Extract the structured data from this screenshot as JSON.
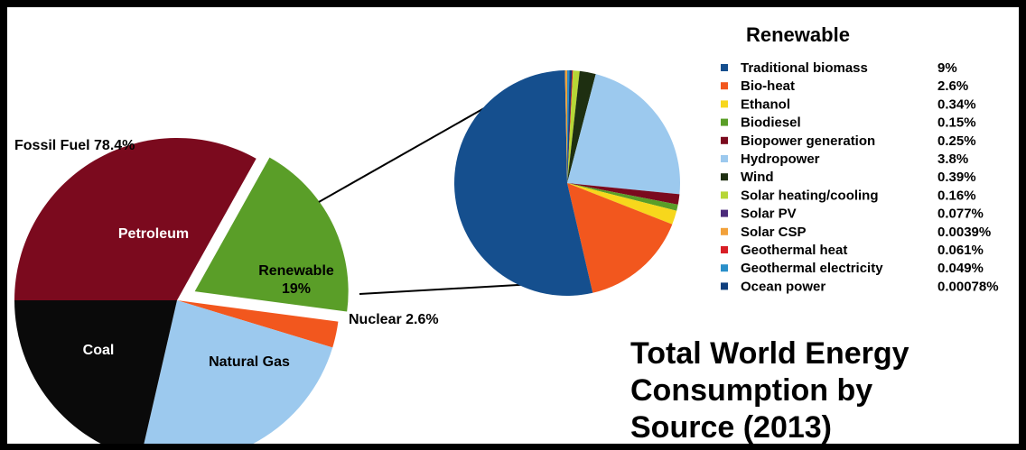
{
  "chart_data": [
    {
      "type": "pie",
      "title": "Total World Energy Consumption by Source (2013)",
      "title_lines": [
        "Total World Energy",
        "Consumption by",
        "Source (2013)"
      ],
      "group_label": "Fossil Fuel",
      "group_value_label": "78.4%",
      "slices": [
        {
          "name": "Petroleum",
          "value": 33.1,
          "color": "#7b0a1e"
        },
        {
          "name": "Renewable",
          "value": 19,
          "value_label": "19%",
          "color": "#5a9e28"
        },
        {
          "name": "Nuclear",
          "value": 2.6,
          "value_label": "2.6%",
          "color": "#f2571e"
        },
        {
          "name": "Natural Gas",
          "value": 23.9,
          "color": "#9cc9ee"
        },
        {
          "name": "Coal",
          "value": 21.4,
          "color": "#0a0a0a"
        }
      ]
    },
    {
      "type": "pie",
      "title": "Renewable",
      "legend_position": "right",
      "slices": [
        {
          "name": "Traditional biomass",
          "value": 9,
          "label": "9%",
          "color": "#154f8e"
        },
        {
          "name": "Bio-heat",
          "value": 2.6,
          "label": "2.6%",
          "color": "#f2571e"
        },
        {
          "name": "Ethanol",
          "value": 0.34,
          "label": "0.34%",
          "color": "#f7d71c"
        },
        {
          "name": "Biodiesel",
          "value": 0.15,
          "label": "0.15%",
          "color": "#5a9e28"
        },
        {
          "name": "Biopower generation",
          "value": 0.25,
          "label": "0.25%",
          "color": "#7b0a1e"
        },
        {
          "name": "Hydropower",
          "value": 3.8,
          "label": "3.8%",
          "color": "#9cc9ee"
        },
        {
          "name": "Wind",
          "value": 0.39,
          "label": "0.39%",
          "color": "#1e2f11"
        },
        {
          "name": "Solar heating/cooling",
          "value": 0.16,
          "label": "0.16%",
          "color": "#b6d636"
        },
        {
          "name": "Solar PV",
          "value": 0.077,
          "label": "0.077%",
          "color": "#4b2a7a"
        },
        {
          "name": "Solar CSP",
          "value": 0.0039,
          "label": "0.0039%",
          "color": "#f2a13a"
        },
        {
          "name": "Geothermal heat",
          "value": 0.061,
          "label": "0.061%",
          "color": "#d81e26"
        },
        {
          "name": "Geothermal electricity",
          "value": 0.049,
          "label": "0.049%",
          "color": "#2a8fc9"
        },
        {
          "name": "Ocean power",
          "value": 0.00078,
          "label": "0.00078%",
          "color": "#0f3f7d"
        }
      ]
    }
  ]
}
